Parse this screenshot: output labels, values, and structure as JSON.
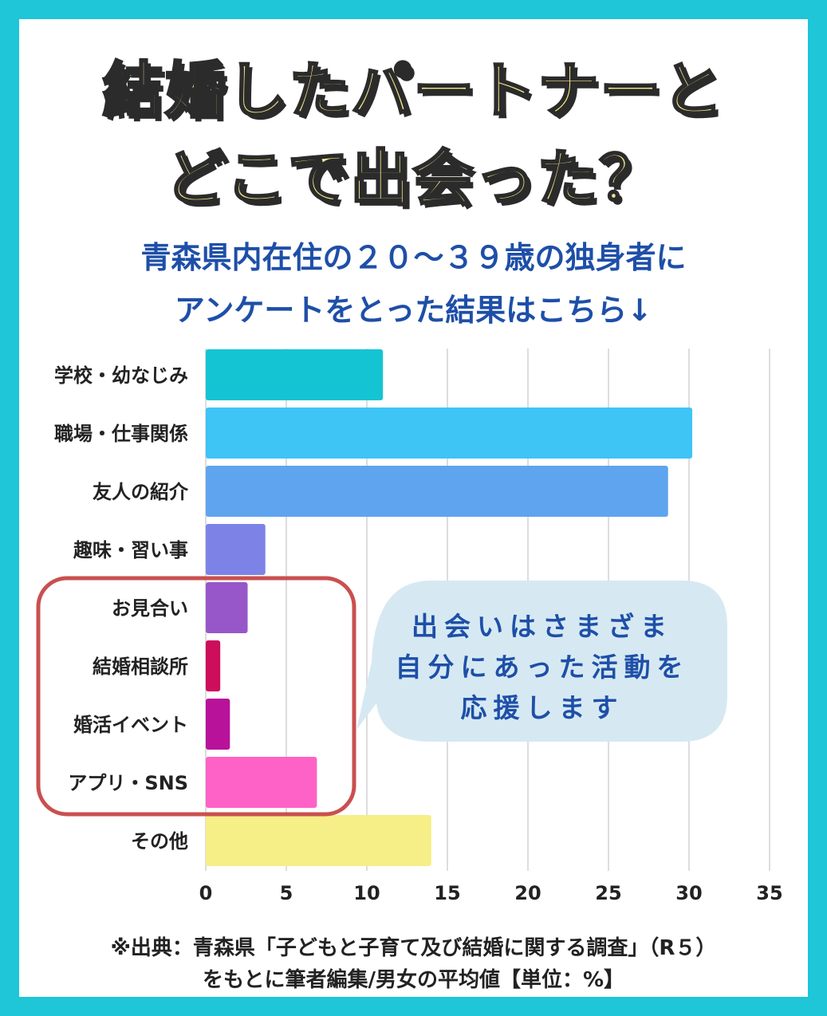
{
  "header": {
    "title_lines": [
      "結婚したパートナーと",
      "どこで出会った？"
    ],
    "subtitle_lines": [
      "青森県内在住の２０～３９歳の独身者に",
      "アンケートをとった結果はこちら↓"
    ]
  },
  "callout": {
    "lines": [
      "出会いはさまざま",
      "自分にあった活動を",
      "応援します"
    ]
  },
  "source": {
    "lines": [
      "※出典：青森県「子どもと子育て及び結婚に関する調査」（R５）",
      "をもとに筆者編集/男女の平均値【単位：%】"
    ]
  },
  "colors": {
    "frame": "#1ec6d8",
    "title_fill": "#f7e98a",
    "subtitle": "#1e4fa8",
    "highlight_box": "#c9504f",
    "bubble": "#d6e9f2"
  },
  "chart_data": {
    "type": "bar",
    "orientation": "horizontal",
    "categories": [
      "学校・幼なじみ",
      "職場・仕事関係",
      "友人の紹介",
      "趣味・習い事",
      "お見合い",
      "結婚相談所",
      "婚活イベント",
      "アプリ・SNS",
      "その他"
    ],
    "values": [
      11,
      30.2,
      28.7,
      3.7,
      2.6,
      0.9,
      1.5,
      6.9,
      14
    ],
    "bar_colors": [
      "#15c4d3",
      "#3ec4f5",
      "#5fa4ee",
      "#7d83e6",
      "#9857c8",
      "#cc0e5c",
      "#b8129b",
      "#ff62c6",
      "#f6ee86"
    ],
    "xlim": [
      0,
      35
    ],
    "x_ticks": [
      0,
      5,
      10,
      15,
      20,
      25,
      30,
      35
    ],
    "grid": true,
    "highlighted_categories": [
      "お見合い",
      "結婚相談所",
      "婚活イベント",
      "アプリ・SNS"
    ]
  }
}
